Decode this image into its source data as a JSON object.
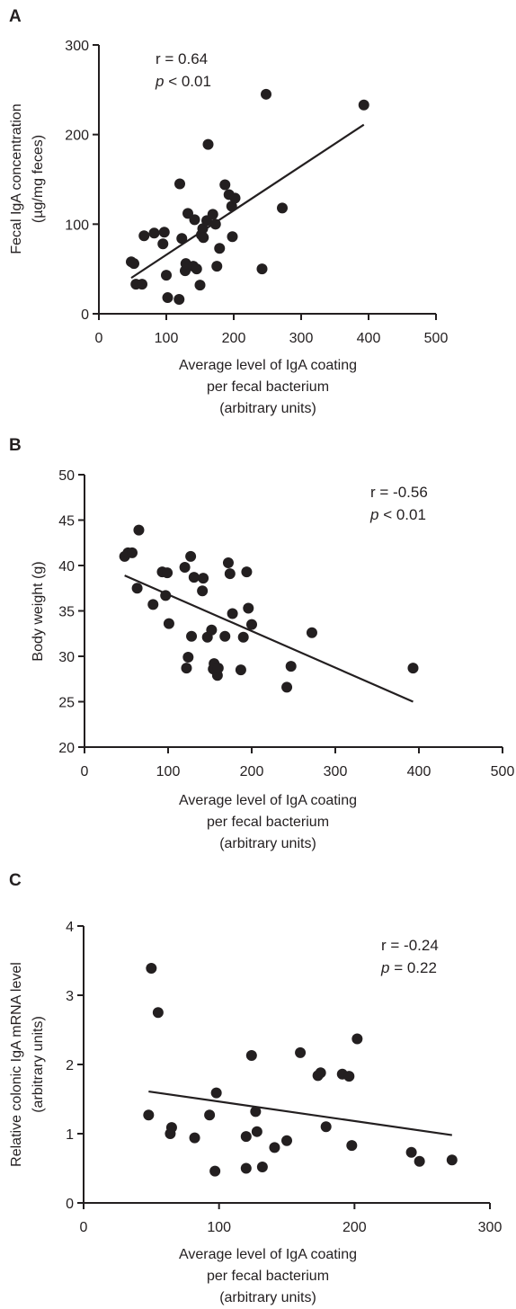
{
  "chart_data": [
    {
      "panel": "A",
      "type": "scatter",
      "xlabel": [
        "Average level of IgA coating",
        "per fecal bacterium",
        "(arbitrary units)"
      ],
      "ylabel": [
        "Fecal IgA concentration",
        "(µg/mg feces)"
      ],
      "xlim": [
        0,
        500
      ],
      "ylim": [
        0,
        300
      ],
      "xticks": [
        "0",
        "100",
        "200",
        "300",
        "400",
        "500"
      ],
      "yticks": [
        "0",
        "100",
        "200",
        "300"
      ],
      "stat_r": "r = 0.64",
      "stat_p_symbol": "p",
      "stat_p_rest": " < 0.01",
      "legend": "none",
      "grid": false,
      "points": [
        [
          48,
          58
        ],
        [
          52,
          56
        ],
        [
          55,
          33
        ],
        [
          64,
          33
        ],
        [
          67,
          87
        ],
        [
          82,
          90
        ],
        [
          95,
          78
        ],
        [
          97,
          91
        ],
        [
          100,
          43
        ],
        [
          102,
          18
        ],
        [
          119,
          16
        ],
        [
          120,
          145
        ],
        [
          123,
          84
        ],
        [
          128,
          48
        ],
        [
          129,
          56
        ],
        [
          132,
          112
        ],
        [
          140,
          53
        ],
        [
          142,
          105
        ],
        [
          145,
          50
        ],
        [
          150,
          32
        ],
        [
          152,
          88
        ],
        [
          154,
          95
        ],
        [
          155,
          85
        ],
        [
          160,
          104
        ],
        [
          162,
          189
        ],
        [
          169,
          111
        ],
        [
          173,
          100
        ],
        [
          175,
          53
        ],
        [
          179,
          73
        ],
        [
          187,
          144
        ],
        [
          193,
          133
        ],
        [
          197,
          120
        ],
        [
          198,
          86
        ],
        [
          202,
          129
        ],
        [
          242,
          50
        ],
        [
          248,
          245
        ],
        [
          272,
          118
        ],
        [
          393,
          233
        ]
      ],
      "fit_line": {
        "x": [
          48,
          393
        ],
        "y": [
          40,
          211
        ]
      }
    },
    {
      "panel": "B",
      "type": "scatter",
      "xlabel": [
        "Average level of IgA coating",
        "per fecal bacterium",
        "(arbitrary units)"
      ],
      "ylabel": [
        "Body weight (g)"
      ],
      "xlim": [
        0,
        500
      ],
      "ylim": [
        20,
        50
      ],
      "xticks": [
        "0",
        "100",
        "200",
        "300",
        "400",
        "500"
      ],
      "yticks": [
        "20",
        "25",
        "30",
        "35",
        "40",
        "45",
        "50"
      ],
      "stat_r": "r = -0.56",
      "stat_p_symbol": "p",
      "stat_p_rest": " < 0.01",
      "legend": "none",
      "grid": false,
      "points": [
        [
          48,
          41
        ],
        [
          52,
          41.4
        ],
        [
          57,
          41.4
        ],
        [
          63,
          37.5
        ],
        [
          65,
          43.9
        ],
        [
          82,
          35.7
        ],
        [
          93,
          39.3
        ],
        [
          97,
          36.7
        ],
        [
          99,
          39.2
        ],
        [
          101,
          33.6
        ],
        [
          120,
          39.8
        ],
        [
          122,
          28.7
        ],
        [
          124,
          29.9
        ],
        [
          127,
          41
        ],
        [
          128,
          32.2
        ],
        [
          131,
          38.7
        ],
        [
          141,
          37.2
        ],
        [
          142,
          38.6
        ],
        [
          147,
          32.1
        ],
        [
          152,
          32.9
        ],
        [
          154,
          28.6
        ],
        [
          155,
          29.2
        ],
        [
          159,
          27.9
        ],
        [
          160,
          28.7
        ],
        [
          168,
          32.2
        ],
        [
          172,
          40.3
        ],
        [
          174,
          39.1
        ],
        [
          177,
          34.7
        ],
        [
          187,
          28.5
        ],
        [
          190,
          32.1
        ],
        [
          194,
          39.3
        ],
        [
          196,
          35.3
        ],
        [
          200,
          33.5
        ],
        [
          242,
          26.6
        ],
        [
          247,
          28.9
        ],
        [
          272,
          32.6
        ],
        [
          393,
          28.7
        ]
      ],
      "fit_line": {
        "x": [
          48,
          393
        ],
        "y": [
          38.9,
          25
        ]
      }
    },
    {
      "panel": "C",
      "type": "scatter",
      "xlabel": [
        "Average level of IgA coating",
        "per fecal bacterium",
        "(arbitrary units)"
      ],
      "ylabel": [
        "Relative colonic IgA mRNA level",
        "(arbitrary units)"
      ],
      "xlim": [
        0,
        300
      ],
      "ylim": [
        0,
        4
      ],
      "xticks": [
        "0",
        "100",
        "200",
        "300"
      ],
      "yticks": [
        "0",
        "1",
        "2",
        "3",
        "4"
      ],
      "stat_r": "r = -0.24",
      "stat_p_symbol": "p",
      "stat_p_rest": " = 0.22",
      "legend": "none",
      "grid": false,
      "points": [
        [
          48,
          1.27
        ],
        [
          50,
          3.39
        ],
        [
          55,
          2.75
        ],
        [
          64,
          1.0
        ],
        [
          65,
          1.09
        ],
        [
          82,
          0.94
        ],
        [
          93,
          1.27
        ],
        [
          97,
          0.46
        ],
        [
          98,
          1.59
        ],
        [
          120,
          0.96
        ],
        [
          120,
          0.5
        ],
        [
          124,
          2.13
        ],
        [
          127,
          1.32
        ],
        [
          128,
          1.03
        ],
        [
          132,
          0.52
        ],
        [
          141,
          0.8
        ],
        [
          150,
          0.9
        ],
        [
          160,
          2.17
        ],
        [
          173,
          1.84
        ],
        [
          175,
          1.88
        ],
        [
          179,
          1.1
        ],
        [
          191,
          1.86
        ],
        [
          196,
          1.83
        ],
        [
          198,
          0.83
        ],
        [
          202,
          2.37
        ],
        [
          242,
          0.73
        ],
        [
          248,
          0.6
        ],
        [
          272,
          0.62
        ]
      ],
      "fit_line": {
        "x": [
          48,
          272
        ],
        "y": [
          1.61,
          0.98
        ]
      }
    }
  ]
}
